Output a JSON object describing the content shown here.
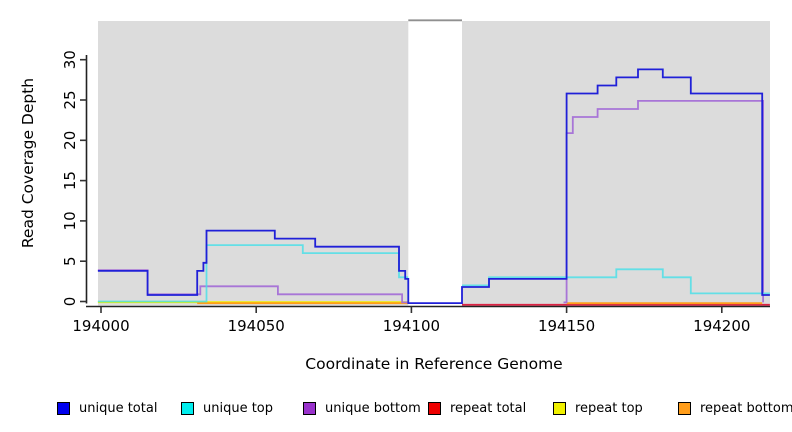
{
  "chart_data": {
    "type": "line",
    "step": true,
    "title": "",
    "xlabel": "Coordinate in Reference Genome",
    "ylabel": "Read Coverage Depth",
    "xlim": [
      193999,
      194215.5
    ],
    "ylim": [
      -0.5,
      34.8
    ],
    "xticks": [
      "194000",
      "194050",
      "194100",
      "194150",
      "194200"
    ],
    "xtick_values": [
      194000,
      194050,
      194100,
      194150,
      194200
    ],
    "yticks": [
      "0",
      "5",
      "10",
      "15",
      "20",
      "25",
      "30"
    ],
    "ytick_values": [
      0,
      5,
      10,
      15,
      20,
      25,
      30
    ],
    "plot_bg": "#dcdcdc",
    "grid": false,
    "uncovered_region": {
      "x0": 194099,
      "x1": 194116.3,
      "color": "#ffffff",
      "top_border_color": "#909090"
    },
    "series": [
      {
        "name": "repeat top",
        "color": "#f0f000",
        "opacity": 1,
        "segments": [
          [
            [
              193999,
              0
            ],
            [
              194099,
              0
            ]
          ]
        ]
      },
      {
        "name": "repeat total",
        "color": "#dd2244",
        "opacity": 1,
        "segments": [
          [
            [
              194116.3,
              0
            ],
            [
              194215.5,
              0
            ]
          ]
        ]
      },
      {
        "name": "repeat bottom",
        "color": "#ff9d1a",
        "opacity": 1,
        "segments": [
          [
            [
              194031,
              0
            ],
            [
              194099,
              0
            ]
          ],
          [
            [
              194150,
              0
            ],
            [
              194213,
              0
            ]
          ]
        ]
      },
      {
        "name": "unique bottom",
        "color": "#a46fd6",
        "opacity": 0.95,
        "segments": [
          [
            [
              193999,
              4
            ],
            [
              194015,
              1
            ],
            [
              194032,
              2
            ],
            [
              194057,
              1
            ],
            [
              194097,
              0
            ],
            [
              194099,
              0
            ]
          ],
          [
            [
              194149,
              0
            ],
            [
              194150,
              21
            ],
            [
              194152,
              23
            ],
            [
              194160,
              24
            ],
            [
              194173,
              25
            ],
            [
              194213,
              25
            ],
            [
              194213.3,
              0
            ]
          ]
        ]
      },
      {
        "name": "unique top",
        "color": "#45e0e8",
        "opacity": 0.8,
        "segments": [
          [
            [
              193999,
              0
            ],
            [
              194034,
              7
            ],
            [
              194065,
              6
            ],
            [
              194096,
              3
            ],
            [
              194099,
              0
            ],
            [
              194099.3,
              0
            ]
          ],
          [
            [
              194116.3,
              2
            ],
            [
              194125,
              3
            ],
            [
              194166,
              4
            ],
            [
              194181,
              3
            ],
            [
              194190,
              1
            ],
            [
              194215.5,
              1
            ]
          ]
        ]
      },
      {
        "name": "unique total",
        "color": "#2020d8",
        "opacity": 1,
        "segments": [
          [
            [
              193999,
              4
            ],
            [
              194015,
              1
            ],
            [
              194031,
              4
            ],
            [
              194033,
              5
            ],
            [
              194034,
              9
            ],
            [
              194056,
              8
            ],
            [
              194069,
              7
            ],
            [
              194096,
              4
            ],
            [
              194098,
              3
            ],
            [
              194099,
              0
            ],
            [
              194116.3,
              2
            ],
            [
              194125,
              3
            ],
            [
              194150,
              26
            ],
            [
              194160,
              27
            ],
            [
              194166,
              28
            ],
            [
              194173,
              29
            ],
            [
              194181,
              28
            ],
            [
              194190,
              26
            ],
            [
              194213,
              1
            ],
            [
              194215.5,
              1
            ]
          ]
        ]
      }
    ],
    "legend": [
      {
        "label": "unique total",
        "swatch": "#0000ee"
      },
      {
        "label": "unique top",
        "swatch": "#00eeee"
      },
      {
        "label": "unique bottom",
        "swatch": "#9932cc"
      },
      {
        "label": "repeat total",
        "swatch": "#ee0000"
      },
      {
        "label": "repeat top",
        "swatch": "#f0f000"
      },
      {
        "label": "repeat bottom",
        "swatch": "#ff9d1a"
      }
    ],
    "legend_position": "bottom"
  }
}
